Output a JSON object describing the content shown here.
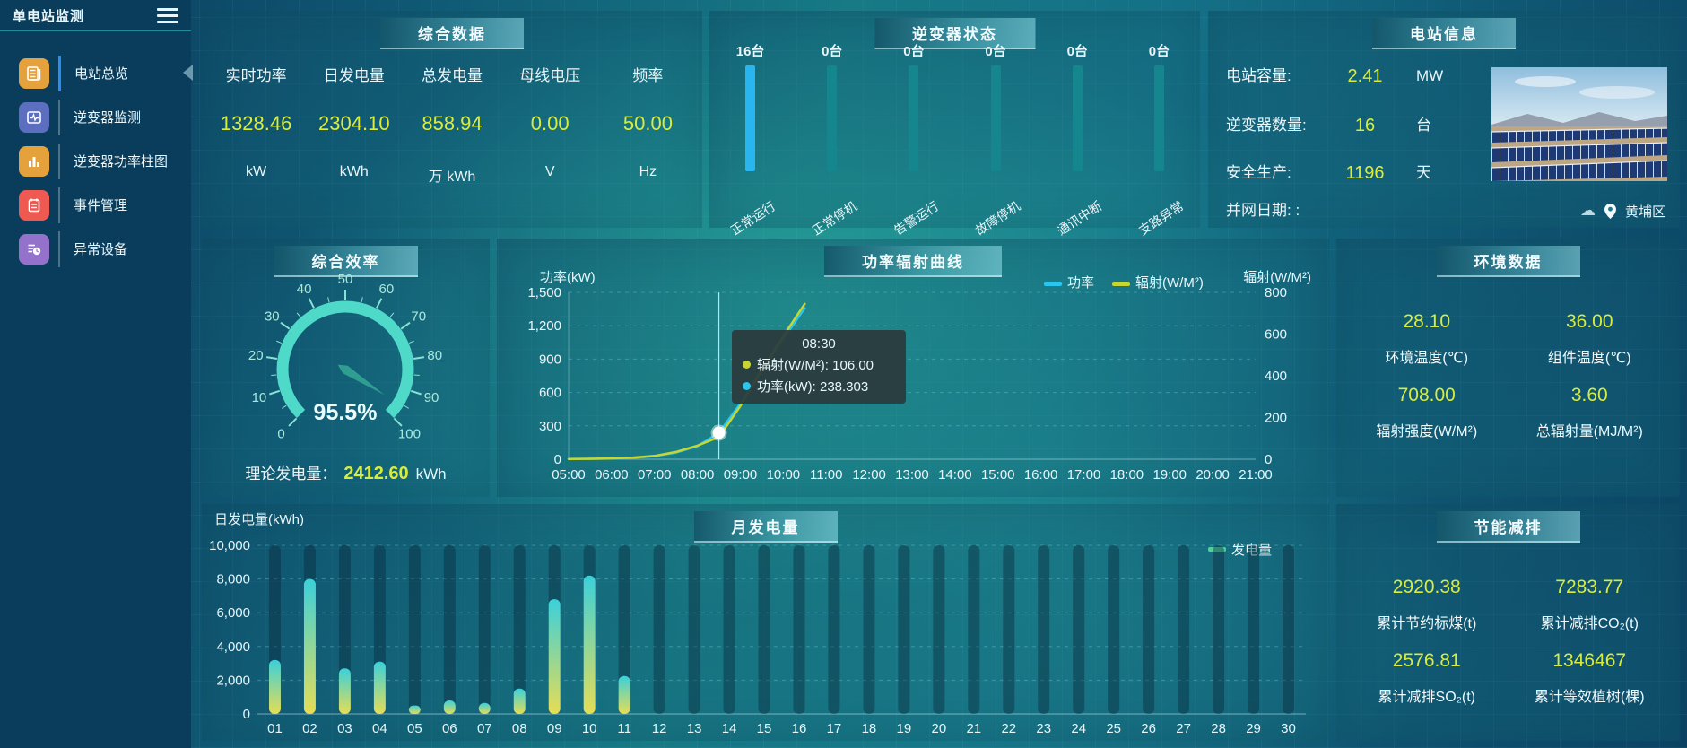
{
  "app": {
    "title": "单电站监测"
  },
  "colors": {
    "value_yellow": "#d8ec3f",
    "active_menu_indicator": "#2d8cf0",
    "gauge_arc": "#4fd9c8",
    "inverter_active_bar": "#29b5ef",
    "inverter_idle_bar": "#15858e"
  },
  "sidebar": {
    "items": [
      {
        "label": "电站总览",
        "icon_color": "#e5a23c",
        "active": true
      },
      {
        "label": "逆变器监测",
        "icon_color": "#5b6ec0",
        "active": false
      },
      {
        "label": "逆变器功率柱图",
        "icon_color": "#e5a23c",
        "active": false
      },
      {
        "label": "事件管理",
        "icon_color": "#ee5a52",
        "active": false
      },
      {
        "label": "异常设备",
        "icon_color": "#9472cc",
        "active": false
      }
    ]
  },
  "panels": {
    "stats": {
      "title": "综合数据",
      "columns": [
        {
          "label": "实时功率",
          "value": "1328.46",
          "unit": "kW"
        },
        {
          "label": "日发电量",
          "value": "2304.10",
          "unit": "kWh"
        },
        {
          "label": "总发电量",
          "value": "858.94",
          "unit": "万 kWh"
        },
        {
          "label": "母线电压",
          "value": "0.00",
          "unit": "V"
        },
        {
          "label": "频率",
          "value": "50.00",
          "unit": "Hz"
        }
      ]
    },
    "inverter": {
      "title": "逆变器状态",
      "items": [
        {
          "count": "16台",
          "label": "正常运行",
          "bar_color": "#29b5ef",
          "active": true
        },
        {
          "count": "0台",
          "label": "正常停机",
          "bar_color": "#15858e",
          "active": false
        },
        {
          "count": "0台",
          "label": "告警运行",
          "bar_color": "#15858e",
          "active": false
        },
        {
          "count": "0台",
          "label": "故障停机",
          "bar_color": "#15858e",
          "active": false
        },
        {
          "count": "0台",
          "label": "通讯中断",
          "bar_color": "#15858e",
          "active": false
        },
        {
          "count": "0台",
          "label": "支路异常",
          "bar_color": "#15858e",
          "active": false
        }
      ]
    },
    "info": {
      "title": "电站信息",
      "rows": [
        {
          "label": "电站容量:",
          "value": "2.41",
          "unit": "MW"
        },
        {
          "label": "逆变器数量:",
          "value": "16",
          "unit": "台"
        },
        {
          "label": "安全生产:",
          "value": "1196",
          "unit": "天"
        },
        {
          "label": "并网日期: :",
          "value": "",
          "unit": ""
        }
      ],
      "location": "黄埔区"
    },
    "env": {
      "title": "环境数据",
      "cells": [
        {
          "value": "28.10",
          "label": "环境温度(℃)"
        },
        {
          "value": "36.00",
          "label": "组件温度(℃)"
        },
        {
          "value": "708.00",
          "label": "辐射强度(W/M²)"
        },
        {
          "value": "3.60",
          "label": "总辐射量(MJ/M²)"
        }
      ]
    },
    "saving": {
      "title": "节能减排",
      "cells": [
        {
          "value": "2920.38",
          "label": "累计节约标煤(t)"
        },
        {
          "value": "7283.77",
          "label": "累计减排CO₂(t)"
        },
        {
          "value": "2576.81",
          "label": "累计减排SO₂(t)"
        },
        {
          "value": "1346467",
          "label": "累计等效植树(棵)"
        }
      ]
    }
  },
  "chart_data": [
    {
      "id": "efficiency_gauge",
      "type": "gauge",
      "title": "综合效率",
      "min": 0,
      "max": 100,
      "tick_step": 10,
      "value": 95.5,
      "value_label": "95.5%",
      "footer": {
        "label": "理论发电量：",
        "value": "2412.60",
        "unit": "kWh"
      }
    },
    {
      "id": "power_radiation",
      "type": "line",
      "title": "功率辐射曲线",
      "x_range": [
        5,
        21
      ],
      "x_ticks": [
        "05:00",
        "06:00",
        "07:00",
        "08:00",
        "09:00",
        "10:00",
        "11:00",
        "12:00",
        "13:00",
        "14:00",
        "15:00",
        "16:00",
        "17:00",
        "18:00",
        "19:00",
        "20:00",
        "21:00"
      ],
      "left_axis": {
        "name": "功率(kW)",
        "min": 0,
        "max": 1500,
        "ticks": [
          "0",
          "300",
          "600",
          "900",
          "1,200",
          "1,500"
        ]
      },
      "right_axis": {
        "name": "辐射(W/M²)",
        "min": 0,
        "max": 800,
        "ticks": [
          "0",
          "200",
          "400",
          "600",
          "800"
        ]
      },
      "legend": [
        {
          "label": "功率",
          "color": "#29c6f0"
        },
        {
          "label": "辐射(W/M²)",
          "color": "#c8d631"
        }
      ],
      "series": [
        {
          "name": "功率",
          "axis": "left",
          "color": "#29c6f0",
          "points": [
            [
              5,
              2
            ],
            [
              5.5,
              3
            ],
            [
              6,
              6
            ],
            [
              6.5,
              12
            ],
            [
              7,
              28
            ],
            [
              7.5,
              60
            ],
            [
              8,
              118
            ],
            [
              8.5,
              238.3
            ],
            [
              9,
              500
            ],
            [
              9.5,
              800
            ],
            [
              10,
              1080
            ],
            [
              10.5,
              1360
            ]
          ]
        },
        {
          "name": "辐射",
          "axis": "right",
          "color": "#c8d631",
          "points": [
            [
              5,
              1
            ],
            [
              5.5,
              2
            ],
            [
              6,
              4
            ],
            [
              6.5,
              8
            ],
            [
              7,
              16
            ],
            [
              7.5,
              35
            ],
            [
              8,
              65
            ],
            [
              8.5,
              106
            ],
            [
              9,
              255
            ],
            [
              9.5,
              430
            ],
            [
              10,
              590
            ],
            [
              10.5,
              745
            ]
          ]
        }
      ],
      "hover": {
        "x": 8.5,
        "power": 238.3,
        "radiation": 106
      },
      "tooltip": {
        "time": "08:30",
        "lines": [
          {
            "color": "#c8d631",
            "text": "辐射(W/M²): 106.00"
          },
          {
            "color": "#29c6f0",
            "text": "功率(kW): 238.303"
          }
        ]
      }
    },
    {
      "id": "monthly_generation",
      "type": "bar",
      "title": "月发电量",
      "ylabel": "日发电量(kWh)",
      "ymax": 10000,
      "y_ticks": [
        "0",
        "2,000",
        "4,000",
        "6,000",
        "8,000",
        "10,000"
      ],
      "legend": {
        "label": "发电量",
        "color": "#4fd0a0"
      },
      "categories": [
        "01",
        "02",
        "03",
        "04",
        "05",
        "06",
        "07",
        "08",
        "09",
        "10",
        "11",
        "12",
        "13",
        "14",
        "15",
        "16",
        "17",
        "18",
        "19",
        "20",
        "21",
        "22",
        "23",
        "24",
        "25",
        "26",
        "27",
        "28",
        "29",
        "30"
      ],
      "values": [
        3200,
        8000,
        2700,
        3100,
        500,
        800,
        650,
        1500,
        6800,
        8200,
        2250,
        0,
        0,
        0,
        0,
        0,
        0,
        0,
        0,
        0,
        0,
        0,
        0,
        0,
        0,
        0,
        0,
        0,
        0,
        0
      ]
    }
  ]
}
